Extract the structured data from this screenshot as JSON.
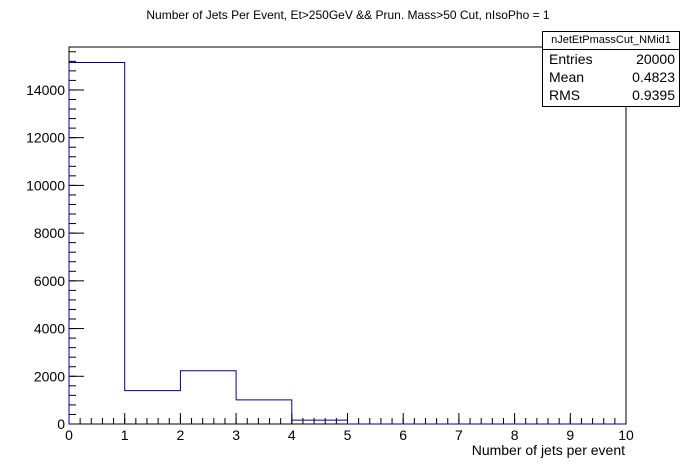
{
  "chart_data": {
    "type": "bar",
    "title": "Number of Jets Per Event, Et>250GeV && Prun. Mass>50 Cut, nIsoPho = 1",
    "xlabel": "Number of jets per event",
    "ylabel": "",
    "xlim": [
      0,
      10
    ],
    "ylim": [
      0,
      15800
    ],
    "bins": [
      {
        "low": 0,
        "high": 1,
        "value": 15150
      },
      {
        "low": 1,
        "high": 2,
        "value": 1400
      },
      {
        "low": 2,
        "high": 3,
        "value": 2230
      },
      {
        "low": 3,
        "high": 4,
        "value": 1010
      },
      {
        "low": 4,
        "high": 5,
        "value": 160
      },
      {
        "low": 5,
        "high": 6,
        "value": 0
      },
      {
        "low": 6,
        "high": 7,
        "value": 0
      },
      {
        "low": 7,
        "high": 8,
        "value": 0
      },
      {
        "low": 8,
        "high": 9,
        "value": 0
      },
      {
        "low": 9,
        "high": 10,
        "value": 0
      }
    ],
    "x_ticks": [
      "0",
      "1",
      "2",
      "3",
      "4",
      "5",
      "6",
      "7",
      "8",
      "9",
      "10"
    ],
    "y_ticks": [
      "0",
      "2000",
      "4000",
      "6000",
      "8000",
      "10000",
      "12000",
      "14000"
    ],
    "line_color": "#000099",
    "grid": false,
    "stats": {
      "name": "nJetEtPmassCut_NMid1",
      "rows": [
        {
          "label": "Entries",
          "value": "20000"
        },
        {
          "label": "Mean",
          "value": "0.4823"
        },
        {
          "label": "RMS",
          "value": "0.9395"
        }
      ]
    }
  }
}
